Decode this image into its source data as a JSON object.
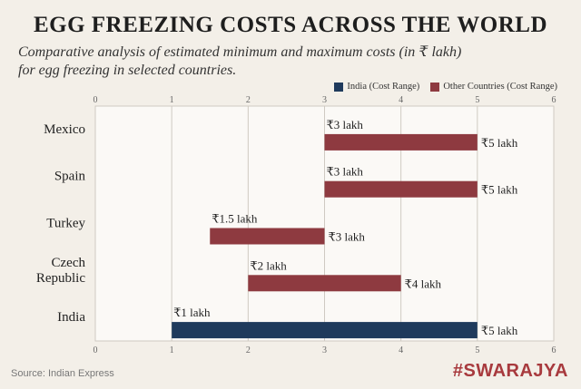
{
  "header": {
    "title": "EGG FREEZING COSTS ACROSS THE WORLD",
    "subtitle_line1": "Comparative analysis of estimated minimum and maximum costs (in ₹ lakh)",
    "subtitle_line2": "for egg freezing in selected countries."
  },
  "legend": {
    "india_label": "India (Cost Range)",
    "other_label": "Other Countries (Cost Range)"
  },
  "footer": {
    "source": "Source: Indian Express",
    "brand": "#SWARAJYA"
  },
  "colors": {
    "india": "#1f3a5c",
    "other": "#8e3a40",
    "grid": "#cfcac2",
    "plot_bg": "#fbf9f6"
  },
  "chart_data": {
    "type": "bar",
    "orientation": "horizontal-range",
    "title": "EGG FREEZING COSTS ACROSS THE WORLD",
    "xlim": [
      0,
      6
    ],
    "xticks": [
      "0",
      "1",
      "2",
      "3",
      "4",
      "5",
      "6"
    ],
    "grid": true,
    "legend_position": "top-right",
    "categories": [
      {
        "name": "Mexico",
        "lines": [
          "Mexico"
        ],
        "min": 3,
        "max": 5,
        "min_label": "₹3 lakh",
        "max_label": "₹5 lakh",
        "group": "other"
      },
      {
        "name": "Spain",
        "lines": [
          "Spain"
        ],
        "min": 3,
        "max": 5,
        "min_label": "₹3 lakh",
        "max_label": "₹5 lakh",
        "group": "other"
      },
      {
        "name": "Turkey",
        "lines": [
          "Turkey"
        ],
        "min": 1.5,
        "max": 3,
        "min_label": "₹1.5 lakh",
        "max_label": "₹3 lakh",
        "group": "other"
      },
      {
        "name": "Czech Republic",
        "lines": [
          "Czech",
          "Republic"
        ],
        "min": 2,
        "max": 4,
        "min_label": "₹2 lakh",
        "max_label": "₹4 lakh",
        "group": "other"
      },
      {
        "name": "India",
        "lines": [
          "India"
        ],
        "min": 1,
        "max": 5,
        "min_label": "₹1 lakh",
        "max_label": "₹5 lakh",
        "group": "india"
      }
    ]
  }
}
